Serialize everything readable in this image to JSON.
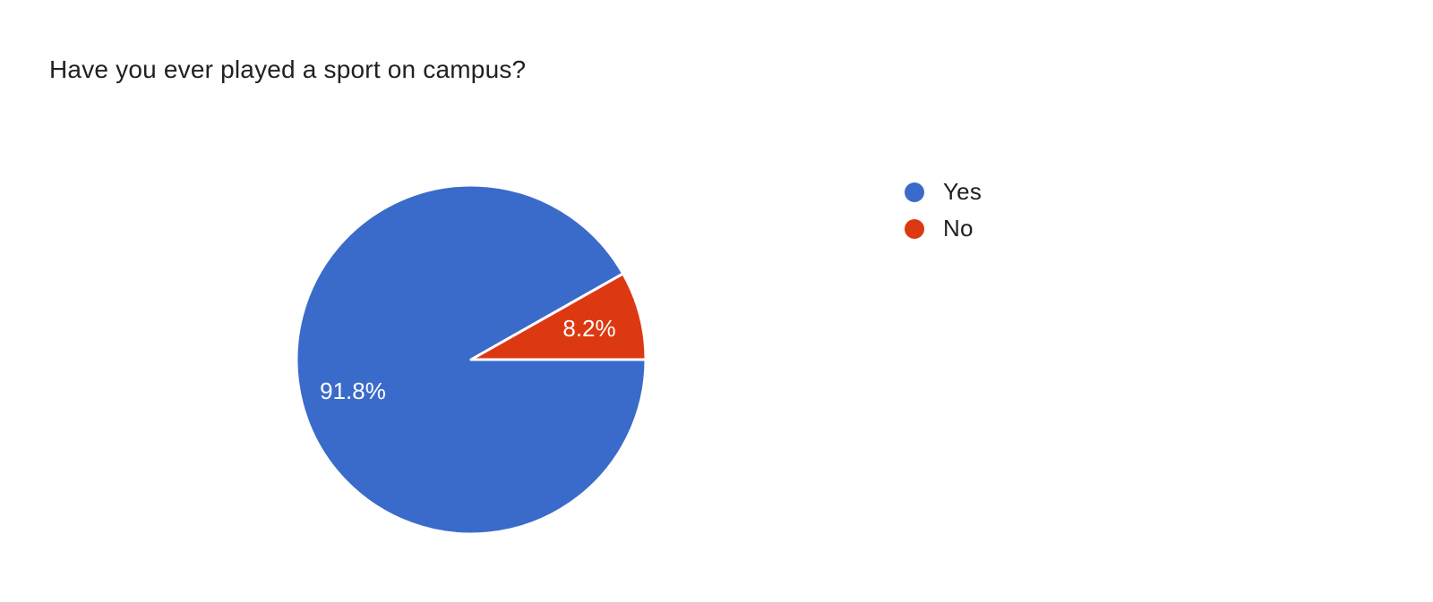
{
  "page": {
    "background": "#ffffff"
  },
  "chart_data": {
    "type": "pie",
    "title": "Have you ever played a sport on campus?",
    "labels": [
      "Yes",
      "No"
    ],
    "values": [
      91.8,
      8.2
    ],
    "value_labels": [
      "91.8%",
      "8.2%"
    ],
    "colors": [
      "#3a6bca",
      "#dc3912"
    ],
    "slice_border_color": "#ffffff",
    "label_text_color": "#ffffff",
    "legend_position": "right",
    "start_angle_deg": 0,
    "direction": "clockwise",
    "label_radius_ratio": 0.7
  }
}
